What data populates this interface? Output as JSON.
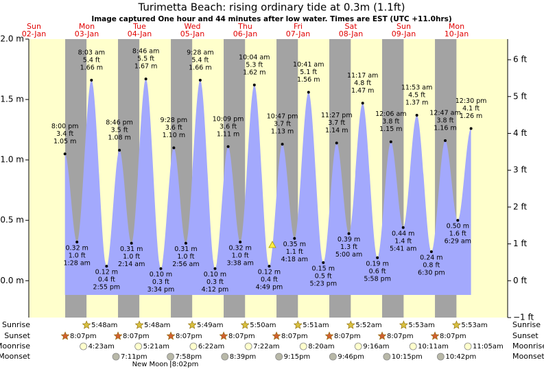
{
  "chart_data": {
    "type": "tide",
    "title": "Turimetta Beach: rising  ordinary tide at 0.3m (1.1ft)",
    "subtitle": "Image captured One hour and 44 minutes after low water. Times are EST (UTC +11.0hrs)",
    "days": [
      {
        "name": "Sun",
        "date": "02-Jan"
      },
      {
        "name": "Mon",
        "date": "03-Jan"
      },
      {
        "name": "Tue",
        "date": "04-Jan"
      },
      {
        "name": "Wed",
        "date": "05-Jan"
      },
      {
        "name": "Thu",
        "date": "06-Jan"
      },
      {
        "name": "Fri",
        "date": "07-Jan"
      },
      {
        "name": "Sat",
        "date": "08-Jan"
      },
      {
        "name": "Sun",
        "date": "09-Jan"
      },
      {
        "name": "Mon",
        "date": "10-Jan"
      }
    ],
    "ylim": [
      -0.305,
      2.0
    ],
    "yticks": [
      {
        "value": 0,
        "label": "0.0 m"
      },
      {
        "value": 0.5,
        "label": "0.5 m"
      },
      {
        "value": 1,
        "label": "1.0 m"
      },
      {
        "value": 1.5,
        "label": "1.5 m"
      },
      {
        "value": 2,
        "label": "2.0 m"
      }
    ],
    "y2lim": [
      -1,
      6.56
    ],
    "y2ticks": [
      {
        "value": -1,
        "label": "−1 ft"
      },
      {
        "value": 0,
        "label": "0 ft"
      },
      {
        "value": 1,
        "label": "1 ft"
      },
      {
        "value": 2,
        "label": "2 ft"
      },
      {
        "value": 3,
        "label": "3 ft"
      },
      {
        "value": 4,
        "label": "4 ft"
      },
      {
        "value": 5,
        "label": "5 ft"
      },
      {
        "value": 6,
        "label": "6 ft"
      }
    ],
    "colors": {
      "day": "#ffffcc",
      "night": "#a3a3a3",
      "water": "#a3a9fd",
      "header": "#e00000"
    },
    "tides": [
      [
        {
          "time": "8:00 pm",
          "value": 1.05,
          "value_label": "1.05 m",
          "ft": 3.4,
          "ft_label": "3.4 ft"
        }
      ],
      [
        {
          "time": "1:28 am",
          "value": 0.32,
          "value_label": "0.32 m",
          "ft": 1.0,
          "ft_label": "1.0 ft"
        },
        {
          "time": "8:03 am",
          "value": 1.66,
          "value_label": "1.66 m",
          "ft": 5.4,
          "ft_label": "5.4 ft"
        },
        {
          "time": "2:55 pm",
          "value": 0.12,
          "value_label": "0.12 m",
          "ft": 0.4,
          "ft_label": "0.4 ft"
        },
        {
          "time": "8:46 pm",
          "value": 1.08,
          "value_label": "1.08 m",
          "ft": 3.5,
          "ft_label": "3.5 ft"
        }
      ],
      [
        {
          "time": "2:14 am",
          "value": 0.31,
          "value_label": "0.31 m",
          "ft": 1.0,
          "ft_label": "1.0 ft"
        },
        {
          "time": "8:46 am",
          "value": 1.67,
          "value_label": "1.67 m",
          "ft": 5.5,
          "ft_label": "5.5 ft"
        },
        {
          "time": "3:34 pm",
          "value": 0.1,
          "value_label": "0.10 m",
          "ft": 0.3,
          "ft_label": "0.3 ft"
        },
        {
          "time": "9:28 pm",
          "value": 1.1,
          "value_label": "1.10 m",
          "ft": 3.6,
          "ft_label": "3.6 ft"
        }
      ],
      [
        {
          "time": "2:56 am",
          "value": 0.31,
          "value_label": "0.31 m",
          "ft": 1.0,
          "ft_label": "1.0 ft"
        },
        {
          "time": "9:28 am",
          "value": 1.66,
          "value_label": "1.66 m",
          "ft": 5.4,
          "ft_label": "5.4 ft"
        },
        {
          "time": "4:12 pm",
          "value": 0.1,
          "value_label": "0.10 m",
          "ft": 0.3,
          "ft_label": "0.3 ft"
        },
        {
          "time": "10:09 pm",
          "value": 1.11,
          "value_label": "1.11 m",
          "ft": 3.6,
          "ft_label": "3.6 ft"
        }
      ],
      [
        {
          "time": "3:38 am",
          "value": 0.32,
          "value_label": "0.32 m",
          "ft": 1.0,
          "ft_label": "1.0 ft"
        },
        {
          "time": "10:04 am",
          "value": 1.62,
          "value_label": "1.62 m",
          "ft": 5.3,
          "ft_label": "5.3 ft"
        },
        {
          "time": "4:49 pm",
          "value": 0.12,
          "value_label": "0.12 m",
          "ft": 0.4,
          "ft_label": "0.4 ft"
        },
        {
          "time": "10:47 pm",
          "value": 1.13,
          "value_label": "1.13 m",
          "ft": 3.7,
          "ft_label": "3.7 ft"
        }
      ],
      [
        {
          "time": "4:18 am",
          "value": 0.35,
          "value_label": "0.35 m",
          "ft": 1.1,
          "ft_label": "1.1 ft"
        },
        {
          "time": "10:41 am",
          "value": 1.56,
          "value_label": "1.56 m",
          "ft": 5.1,
          "ft_label": "5.1 ft"
        },
        {
          "time": "5:23 pm",
          "value": 0.15,
          "value_label": "0.15 m",
          "ft": 0.5,
          "ft_label": "0.5 ft"
        },
        {
          "time": "11:27 pm",
          "value": 1.14,
          "value_label": "1.14 m",
          "ft": 3.7,
          "ft_label": "3.7 ft"
        }
      ],
      [
        {
          "time": "5:00 am",
          "value": 0.39,
          "value_label": "0.39 m",
          "ft": 1.3,
          "ft_label": "1.3 ft"
        },
        {
          "time": "11:17 am",
          "value": 1.47,
          "value_label": "1.47 m",
          "ft": 4.8,
          "ft_label": "4.8 ft"
        },
        {
          "time": "5:58 pm",
          "value": 0.19,
          "value_label": "0.19 m",
          "ft": 0.6,
          "ft_label": "0.6 ft"
        }
      ],
      [
        {
          "time": "12:06 am",
          "value": 1.15,
          "value_label": "1.15 m",
          "ft": 3.8,
          "ft_label": "3.8 ft"
        },
        {
          "time": "5:41 am",
          "value": 0.44,
          "value_label": "0.44 m",
          "ft": 1.4,
          "ft_label": "1.4 ft"
        },
        {
          "time": "11:53 am",
          "value": 1.37,
          "value_label": "1.37 m",
          "ft": 4.5,
          "ft_label": "4.5 ft"
        },
        {
          "time": "6:30 pm",
          "value": 0.24,
          "value_label": "0.24 m",
          "ft": 0.8,
          "ft_label": "0.8 ft"
        }
      ],
      [
        {
          "time": "12:47 am",
          "value": 1.16,
          "value_label": "1.16 m",
          "ft": 3.8,
          "ft_label": "3.8 ft"
        },
        {
          "time": "6:29 am",
          "value": 0.5,
          "value_label": "0.50 m",
          "ft": 1.6,
          "ft_label": "1.6 ft"
        },
        {
          "time": "12:30 pm",
          "value": 1.26,
          "value_label": "1.26 m",
          "ft": 4.1,
          "ft_label": "4.1 ft"
        }
      ]
    ],
    "row_labels": {
      "sunrise": "Sunrise",
      "sunset": "Sunset",
      "moonrise": "Moonrise",
      "moonset": "Moonset"
    },
    "sunrise": [
      null,
      "5:48am",
      "5:48am",
      "5:49am",
      "5:50am",
      "5:51am",
      "5:52am",
      "5:53am",
      "5:53am"
    ],
    "sunset": [
      "8:07pm",
      "8:07pm",
      "8:07pm",
      "8:07pm",
      "8:07pm",
      "8:07pm",
      "8:07pm",
      "8:07pm",
      null
    ],
    "moonrise": [
      null,
      "4:23am",
      "5:21am",
      "6:22am",
      "7:22am",
      "8:20am",
      "9:16am",
      "10:11am",
      "11:05am"
    ],
    "moonset": [
      null,
      "7:11pm",
      "7:58pm",
      "8:39pm",
      "9:15pm",
      "9:46pm",
      "10:15pm",
      "10:42pm",
      null
    ],
    "moon_phase": [
      null,
      null,
      {
        "name": "New Moon",
        "time": "8:02pm"
      },
      null,
      null,
      null,
      null,
      null,
      null
    ]
  }
}
